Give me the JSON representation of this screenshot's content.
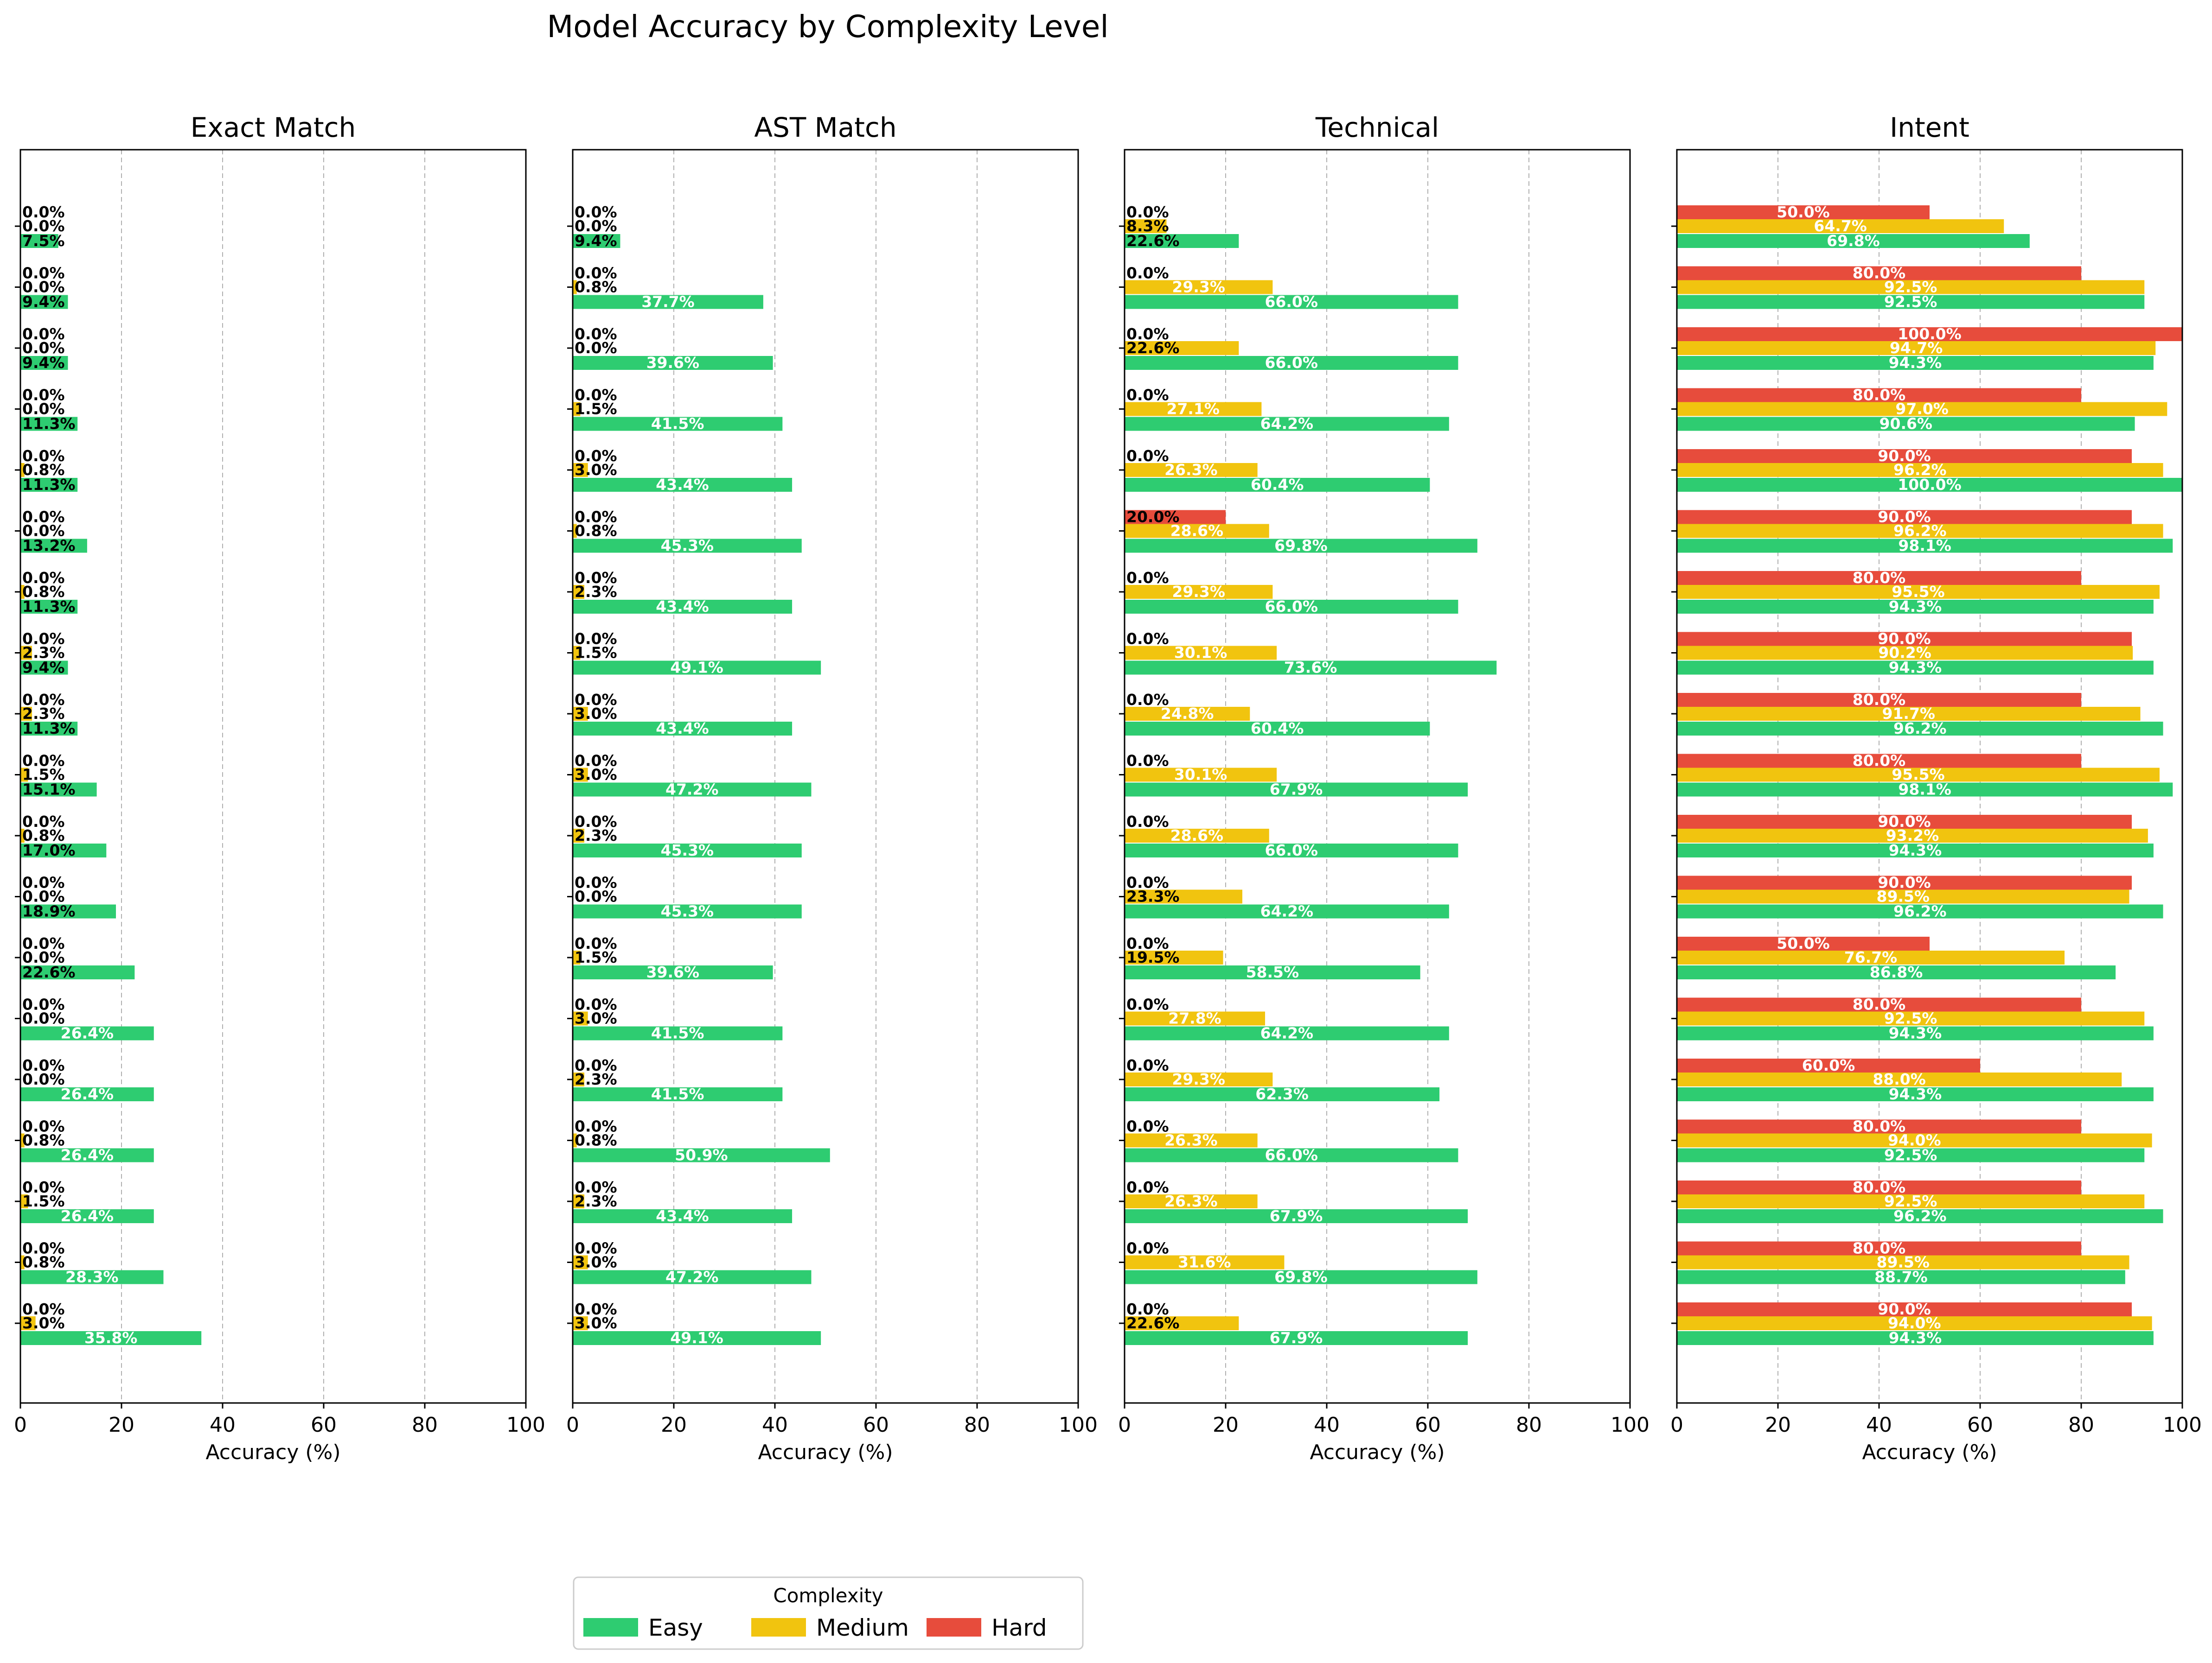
{
  "chart_data": {
    "type": "bar",
    "orientation": "horizontal",
    "title": "Model Accuracy by Complexity Level",
    "xlabel": "Accuracy (%)",
    "xlim": [
      0,
      100
    ],
    "xticks": [
      "0",
      "20",
      "40",
      "60",
      "80",
      "100"
    ],
    "grid": "x-dashed",
    "legend": {
      "title": "Complexity",
      "placement": "bottom-center",
      "entries": [
        "Easy",
        "Medium",
        "Hard"
      ]
    },
    "colors": {
      "Easy": "#2ecc71",
      "Medium": "#f1c40f",
      "Hard": "#e74c3c"
    },
    "value_suffix": "%",
    "panels": [
      {
        "title": "Exact Match",
        "easy": [
          7.5,
          9.4,
          9.4,
          11.3,
          11.3,
          13.2,
          11.3,
          9.4,
          11.3,
          15.1,
          17.0,
          18.9,
          22.6,
          26.4,
          26.4,
          26.4,
          26.4,
          28.3,
          35.8
        ],
        "medium": [
          0.0,
          0.0,
          0.0,
          0.0,
          0.8,
          0.0,
          0.8,
          2.3,
          2.3,
          1.5,
          0.8,
          0.0,
          0.0,
          0.0,
          0.0,
          0.8,
          1.5,
          0.8,
          3.0
        ],
        "hard": [
          0.0,
          0.0,
          0.0,
          0.0,
          0.0,
          0.0,
          0.0,
          0.0,
          0.0,
          0.0,
          0.0,
          0.0,
          0.0,
          0.0,
          0.0,
          0.0,
          0.0,
          0.0,
          0.0
        ]
      },
      {
        "title": "AST Match",
        "easy": [
          9.4,
          37.7,
          39.6,
          41.5,
          43.4,
          45.3,
          43.4,
          49.1,
          43.4,
          47.2,
          45.3,
          45.3,
          39.6,
          41.5,
          41.5,
          50.9,
          43.4,
          47.2,
          49.1
        ],
        "medium": [
          0.0,
          0.8,
          0.0,
          1.5,
          3.0,
          0.8,
          2.3,
          1.5,
          3.0,
          3.0,
          2.3,
          0.0,
          1.5,
          3.0,
          2.3,
          0.8,
          2.3,
          3.0,
          3.0
        ],
        "hard": [
          0.0,
          0.0,
          0.0,
          0.0,
          0.0,
          0.0,
          0.0,
          0.0,
          0.0,
          0.0,
          0.0,
          0.0,
          0.0,
          0.0,
          0.0,
          0.0,
          0.0,
          0.0,
          0.0
        ]
      },
      {
        "title": "Technical",
        "easy": [
          22.6,
          66.0,
          66.0,
          64.2,
          60.4,
          69.8,
          66.0,
          73.6,
          60.4,
          67.9,
          66.0,
          64.2,
          58.5,
          64.2,
          62.3,
          66.0,
          67.9,
          69.8,
          67.9
        ],
        "medium": [
          8.3,
          29.3,
          22.6,
          27.1,
          26.3,
          28.6,
          29.3,
          30.1,
          24.8,
          30.1,
          28.6,
          23.3,
          19.5,
          27.8,
          29.3,
          26.3,
          26.3,
          31.6,
          22.6
        ],
        "hard": [
          0.0,
          0.0,
          0.0,
          0.0,
          0.0,
          20.0,
          0.0,
          0.0,
          0.0,
          0.0,
          0.0,
          0.0,
          0.0,
          0.0,
          0.0,
          0.0,
          0.0,
          0.0,
          0.0
        ]
      },
      {
        "title": "Intent",
        "easy": [
          69.8,
          92.5,
          94.3,
          90.6,
          100.0,
          98.1,
          94.3,
          94.3,
          96.2,
          98.1,
          94.3,
          96.2,
          86.8,
          94.3,
          94.3,
          92.5,
          96.2,
          88.7,
          94.3
        ],
        "medium": [
          64.7,
          92.5,
          94.7,
          97.0,
          96.2,
          96.2,
          95.5,
          90.2,
          91.7,
          95.5,
          93.2,
          89.5,
          76.7,
          92.5,
          88.0,
          94.0,
          92.5,
          89.5,
          94.0
        ],
        "hard": [
          50.0,
          80.0,
          100.0,
          80.0,
          90.0,
          90.0,
          80.0,
          90.0,
          80.0,
          80.0,
          90.0,
          90.0,
          50.0,
          80.0,
          60.0,
          80.0,
          80.0,
          80.0,
          90.0
        ]
      }
    ]
  }
}
